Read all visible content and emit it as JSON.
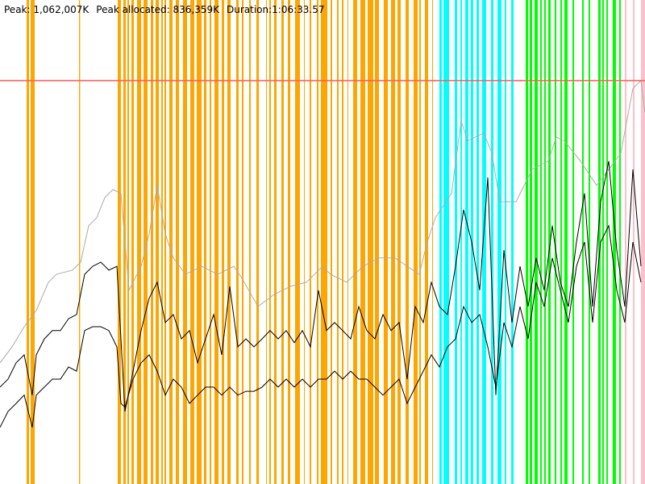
{
  "chart_data": {
    "type": "gc-timeline",
    "header": [
      "Peak: 1,062,007K",
      "Peak allocated: 836,359K",
      "Duration:1:06:33.57"
    ],
    "xlim": [
      0,
      4000
    ],
    "ylim": [
      0,
      1274000
    ],
    "peak": 1062007,
    "peak_color": "#ff5a5a",
    "stripes": [
      {
        "color": "#ffa500",
        "spans": [
          [
            165,
            180
          ],
          [
            190,
            215
          ],
          [
            490,
            497
          ],
          [
            730,
            750
          ],
          [
            765,
            780
          ],
          [
            790,
            800
          ],
          [
            815,
            830
          ],
          [
            850,
            875
          ],
          [
            890,
            915
          ],
          [
            935,
            950
          ],
          [
            965,
            985
          ],
          [
            1000,
            1010
          ],
          [
            1020,
            1030
          ],
          [
            1050,
            1070
          ],
          [
            1090,
            1110
          ],
          [
            1135,
            1160
          ],
          [
            1180,
            1205
          ],
          [
            1220,
            1250
          ],
          [
            1265,
            1280
          ],
          [
            1300,
            1310
          ],
          [
            1330,
            1355
          ],
          [
            1375,
            1390
          ],
          [
            1410,
            1430
          ],
          [
            1465,
            1480
          ],
          [
            1500,
            1510
          ],
          [
            1545,
            1555
          ],
          [
            1590,
            1605
          ],
          [
            1650,
            1655
          ],
          [
            1670,
            1680
          ],
          [
            1700,
            1715
          ],
          [
            1745,
            1760
          ],
          [
            1785,
            1800
          ],
          [
            1830,
            1860
          ],
          [
            1885,
            1890
          ],
          [
            1920,
            1930
          ],
          [
            1965,
            1975
          ],
          [
            1990,
            2030
          ],
          [
            2050,
            2060
          ],
          [
            2090,
            2100
          ],
          [
            2120,
            2130
          ],
          [
            2155,
            2160
          ],
          [
            2190,
            2215
          ],
          [
            2235,
            2265
          ],
          [
            2280,
            2315
          ],
          [
            2325,
            2350
          ],
          [
            2380,
            2405
          ],
          [
            2425,
            2450
          ],
          [
            2465,
            2485
          ],
          [
            2515,
            2535
          ],
          [
            2565,
            2590
          ],
          [
            2600,
            2610
          ],
          [
            2635,
            2655
          ],
          [
            2680,
            2685
          ]
        ]
      },
      {
        "color": "#00ffff",
        "spans": [
          [
            2725,
            2740
          ],
          [
            2750,
            2785
          ],
          [
            2820,
            2835
          ],
          [
            2855,
            2865
          ],
          [
            2885,
            2905
          ],
          [
            2920,
            2935
          ],
          [
            2955,
            2970
          ],
          [
            2990,
            3015
          ],
          [
            3045,
            3060
          ],
          [
            3085,
            3110
          ],
          [
            3130,
            3140
          ],
          [
            3170,
            3185
          ]
        ]
      },
      {
        "color": "#00ff00",
        "spans": [
          [
            3260,
            3275
          ],
          [
            3285,
            3300
          ],
          [
            3315,
            3335
          ],
          [
            3350,
            3360
          ],
          [
            3375,
            3385
          ],
          [
            3400,
            3415
          ],
          [
            3440,
            3450
          ],
          [
            3475,
            3485
          ],
          [
            3500,
            3520
          ],
          [
            3550,
            3560
          ],
          [
            3610,
            3620
          ],
          [
            3650,
            3660
          ],
          [
            3710,
            3725
          ],
          [
            3735,
            3745
          ],
          [
            3760,
            3770
          ],
          [
            3800,
            3820
          ],
          [
            3840,
            3850
          ]
        ]
      },
      {
        "color": "#ffc0cb",
        "spans": [
          [
            3875,
            3885
          ],
          [
            3925,
            3935
          ],
          [
            3975,
            4000
          ]
        ]
      }
    ],
    "series": [
      {
        "color": "#aaaaaa",
        "x": [
          0,
          75,
          150,
          225,
          300,
          350,
          450,
          500,
          550,
          600,
          650,
          700,
          750,
          800,
          875,
          925,
          975,
          1025,
          1075,
          1150,
          1250,
          1350,
          1450,
          1500,
          1600,
          1700,
          1800,
          1900,
          2000,
          2050,
          2150,
          2250,
          2350,
          2450,
          2525,
          2600,
          2650,
          2700,
          2800,
          2860,
          2900,
          3000,
          3050,
          3100,
          3200,
          3300,
          3400,
          3450,
          3500,
          3600,
          3700,
          3775,
          3850,
          3925,
          3975,
          4000
        ],
        "values": [
          319000,
          361000,
          414000,
          457000,
          531000,
          552000,
          563000,
          584000,
          680000,
          701000,
          754000,
          775000,
          765000,
          510000,
          573000,
          658000,
          786000,
          658000,
          595000,
          552000,
          573000,
          552000,
          573000,
          542000,
          467000,
          499000,
          520000,
          531000,
          573000,
          552000,
          531000,
          573000,
          595000,
          595000,
          573000,
          552000,
          637000,
          701000,
          765000,
          956000,
          903000,
          924000,
          871000,
          743000,
          743000,
          828000,
          850000,
          913000,
          903000,
          850000,
          786000,
          828000,
          871000,
          1041000,
          1062000,
          977000
        ]
      },
      {
        "color": "#000000",
        "x": [
          0,
          50,
          100,
          150,
          200,
          225,
          275,
          325,
          375,
          425,
          475,
          525,
          575,
          625,
          675,
          725,
          750,
          775,
          825,
          875,
          925,
          975,
          1025,
          1075,
          1125,
          1175,
          1225,
          1275,
          1325,
          1375,
          1425,
          1475,
          1525,
          1575,
          1625,
          1675,
          1725,
          1775,
          1825,
          1875,
          1925,
          1975,
          2025,
          2075,
          2125,
          2175,
          2225,
          2275,
          2325,
          2375,
          2425,
          2475,
          2525,
          2575,
          2625,
          2675,
          2725,
          2775,
          2825,
          2875,
          2925,
          2975,
          3025,
          3075,
          3125,
          3175,
          3225,
          3275,
          3325,
          3375,
          3425,
          3475,
          3525,
          3575,
          3625,
          3675,
          3725,
          3775,
          3825,
          3875,
          3925,
          3975
        ],
        "values": [
          255000,
          276000,
          319000,
          340000,
          234000,
          340000,
          382000,
          404000,
          404000,
          435000,
          446000,
          552000,
          573000,
          584000,
          563000,
          573000,
          382000,
          191000,
          297000,
          404000,
          489000,
          531000,
          425000,
          446000,
          382000,
          404000,
          319000,
          382000,
          446000,
          340000,
          520000,
          361000,
          382000,
          361000,
          382000,
          404000,
          382000,
          404000,
          372000,
          404000,
          361000,
          510000,
          404000,
          425000,
          404000,
          382000,
          467000,
          404000,
          382000,
          446000,
          404000,
          425000,
          276000,
          467000,
          425000,
          531000,
          467000,
          446000,
          573000,
          722000,
          637000,
          510000,
          807000,
          234000,
          616000,
          425000,
          573000,
          467000,
          595000,
          510000,
          680000,
          531000,
          467000,
          637000,
          765000,
          467000,
          743000,
          850000,
          616000,
          467000,
          828000,
          573000
        ]
      },
      {
        "color": "#000000",
        "x": [
          0,
          50,
          100,
          150,
          200,
          225,
          275,
          325,
          375,
          425,
          475,
          525,
          575,
          625,
          675,
          725,
          750,
          775,
          825,
          875,
          925,
          975,
          1025,
          1075,
          1125,
          1175,
          1225,
          1275,
          1325,
          1375,
          1425,
          1475,
          1525,
          1575,
          1625,
          1675,
          1725,
          1775,
          1825,
          1875,
          1925,
          1975,
          2025,
          2075,
          2125,
          2175,
          2225,
          2275,
          2325,
          2375,
          2425,
          2475,
          2525,
          2575,
          2625,
          2675,
          2725,
          2775,
          2825,
          2875,
          2925,
          2975,
          3025,
          3075,
          3125,
          3175,
          3225,
          3275,
          3325,
          3375,
          3425,
          3475,
          3525,
          3575,
          3625,
          3675,
          3725,
          3775,
          3825,
          3875,
          3925,
          3975
        ],
        "values": [
          149000,
          191000,
          212000,
          234000,
          149000,
          234000,
          255000,
          276000,
          276000,
          308000,
          297000,
          404000,
          414000,
          414000,
          404000,
          361000,
          212000,
          202000,
          276000,
          319000,
          340000,
          297000,
          234000,
          276000,
          255000,
          212000,
          234000,
          255000,
          255000,
          234000,
          255000,
          234000,
          244000,
          244000,
          255000,
          276000,
          255000,
          276000,
          255000,
          276000,
          255000,
          276000,
          276000,
          297000,
          276000,
          297000,
          276000,
          276000,
          255000,
          234000,
          255000,
          276000,
          212000,
          255000,
          297000,
          340000,
          308000,
          361000,
          382000,
          467000,
          425000,
          446000,
          361000,
          255000,
          425000,
          361000,
          467000,
          382000,
          531000,
          467000,
          595000,
          510000,
          425000,
          573000,
          637000,
          425000,
          637000,
          680000,
          510000,
          425000,
          637000,
          531000
        ]
      }
    ]
  }
}
